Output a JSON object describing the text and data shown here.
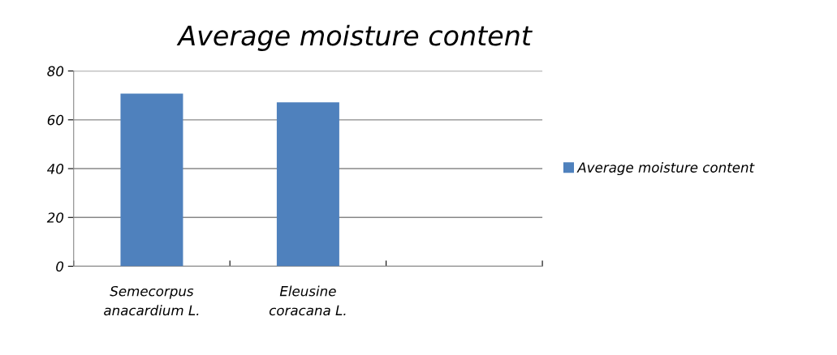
{
  "chart_data": {
    "type": "bar",
    "title": "Average moisture content",
    "categories": [
      "Semecorpus anacardium L.",
      "Eleusine coracana L.",
      null
    ],
    "series": [
      {
        "name": "Average moisture content",
        "color": "#4f81bd",
        "values": [
          70.7,
          67.2,
          null
        ]
      }
    ],
    "ylim": [
      0,
      80
    ],
    "yticks": [
      0,
      20,
      40,
      60,
      80
    ],
    "grid": "y",
    "legend": "right"
  }
}
